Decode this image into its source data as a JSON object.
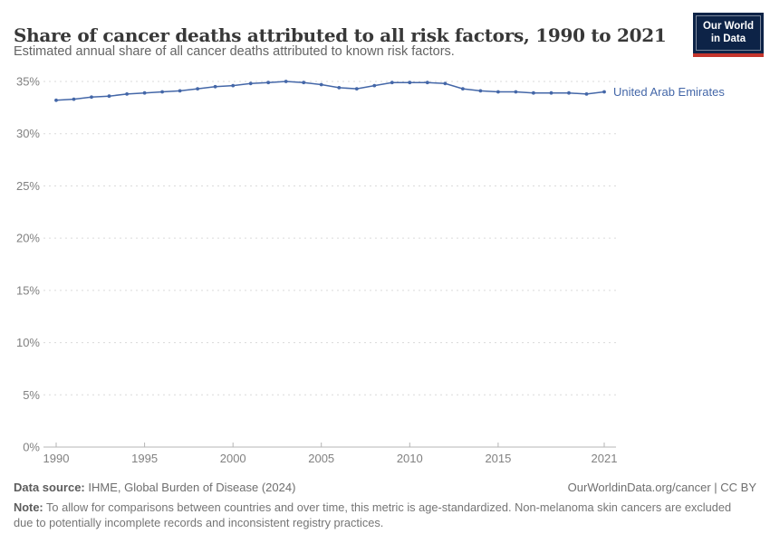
{
  "header": {
    "title": "Share of cancer deaths attributed to all risk factors, 1990 to 2021",
    "subtitle": "Estimated annual share of all cancer deaths attributed to known risk factors."
  },
  "logo": {
    "line1": "Our World",
    "line2": "in Data",
    "bg_color": "#0d2347",
    "accent_color": "#c4352c"
  },
  "chart_data": {
    "type": "line",
    "title": "Share of cancer deaths attributed to all risk factors, 1990 to 2021",
    "xlabel": "",
    "ylabel": "",
    "xlim": [
      1990,
      2021
    ],
    "ylim": [
      0,
      35
    ],
    "x_ticks": [
      1990,
      1995,
      2000,
      2005,
      2010,
      2015,
      2021
    ],
    "y_ticks": [
      0,
      5,
      10,
      15,
      20,
      25,
      30,
      35
    ],
    "y_tick_suffix": "%",
    "grid": "horizontal-dashed",
    "legend_position": "line-end-label",
    "axis_color": "#b5b5b5",
    "grid_color": "#dadada",
    "tick_label_color": "#818181",
    "series": [
      {
        "name": "United Arab Emirates",
        "color": "#4467a8",
        "x": [
          1990,
          1991,
          1992,
          1993,
          1994,
          1995,
          1996,
          1997,
          1998,
          1999,
          2000,
          2001,
          2002,
          2003,
          2004,
          2005,
          2006,
          2007,
          2008,
          2009,
          2010,
          2011,
          2012,
          2013,
          2014,
          2015,
          2016,
          2017,
          2018,
          2019,
          2020,
          2021
        ],
        "values": [
          33.2,
          33.3,
          33.5,
          33.6,
          33.8,
          33.9,
          34.0,
          34.1,
          34.3,
          34.5,
          34.6,
          34.8,
          34.9,
          35.0,
          34.9,
          34.7,
          34.4,
          34.3,
          34.6,
          34.9,
          34.9,
          34.9,
          34.8,
          34.3,
          34.1,
          34.0,
          34.0,
          33.9,
          33.9,
          33.9,
          33.8,
          34.0
        ]
      }
    ]
  },
  "footer": {
    "data_source_label": "Data source:",
    "data_source": "IHME, Global Burden of Disease (2024)",
    "attribution": "OurWorldinData.org/cancer | CC BY",
    "note_label": "Note:",
    "note": "To allow for comparisons between countries and over time, this metric is age-standardized. Non-melanoma skin cancers are excluded due to potentially incomplete records and inconsistent registry practices."
  }
}
